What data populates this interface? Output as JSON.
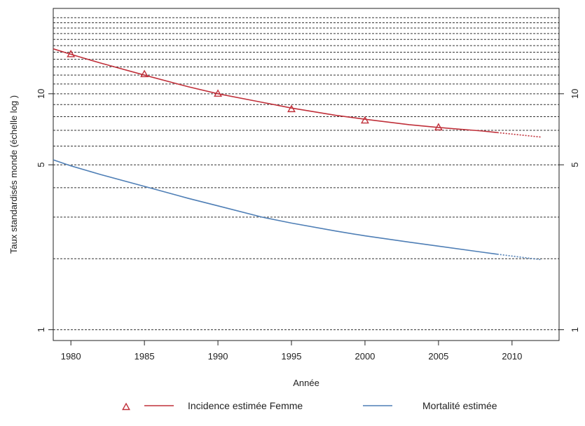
{
  "chart_data": {
    "type": "line",
    "title": "",
    "xlabel": "Année",
    "ylabel": "Taux standardisés monde (échelle log )",
    "y_scale": "log",
    "xlim": [
      1978.8,
      2013.2
    ],
    "ylim": [
      0.9,
      23
    ],
    "x_ticks": [
      1980,
      1985,
      1990,
      1995,
      2000,
      2005,
      2010
    ],
    "x_tick_labels": [
      "1980",
      "1985",
      "1990",
      "1995",
      "2000",
      "2005",
      "2010"
    ],
    "y_ticks": [
      1,
      5,
      10
    ],
    "y_tick_labels": [
      "1",
      "5",
      "10"
    ],
    "grid": "horizontal dashed",
    "grid_lines": [
      1,
      2,
      3,
      4,
      5,
      6,
      7,
      8,
      9,
      10,
      11,
      12,
      13,
      14,
      15,
      16,
      17,
      18,
      19,
      20,
      21
    ],
    "legend_position": "bottom",
    "series": [
      {
        "name": "Incidence estimée Femme",
        "color": "#c0303a",
        "marker": "triangle",
        "x": [
          1978.8,
          1980,
          1982,
          1985,
          1988,
          1990,
          1993,
          1995,
          1998,
          2000,
          2003,
          2005,
          2008,
          2009,
          2012
        ],
        "y": [
          15.5,
          14.7,
          13.5,
          12.0,
          10.7,
          10.0,
          9.2,
          8.7,
          8.1,
          7.8,
          7.4,
          7.2,
          6.95,
          6.85,
          6.55
        ],
        "observed_until": 2009,
        "marker_points": {
          "x": [
            1980,
            1985,
            1990,
            1995,
            2000,
            2005
          ],
          "y": [
            14.7,
            12.1,
            10.0,
            8.6,
            7.7,
            7.2
          ]
        }
      },
      {
        "name": "Mortalité estimée",
        "color": "#4f7fb6",
        "marker": "none",
        "x": [
          1978.8,
          1980,
          1982,
          1985,
          1988,
          1990,
          1993,
          1995,
          1998,
          2000,
          2003,
          2005,
          2008,
          2009,
          2012
        ],
        "y": [
          5.25,
          4.95,
          4.55,
          4.05,
          3.6,
          3.35,
          3.0,
          2.83,
          2.62,
          2.5,
          2.35,
          2.26,
          2.13,
          2.09,
          1.98
        ],
        "observed_until": 2009
      }
    ]
  }
}
